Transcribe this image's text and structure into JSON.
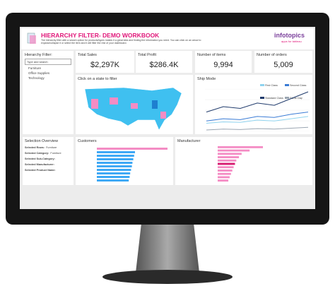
{
  "header": {
    "title": "HIERARCHY FILTER- DEMO WORKBOOK",
    "description": "The hierarchy filter with a search option for products/types makes it a great idea and finding the information you need. You can click on an arrow to expand/collapse it or select the item and it will filter the rest of your dashboard.",
    "logo": "infotopics",
    "logo_tagline": "apps for tableau"
  },
  "filter": {
    "title": "Hierarchy Filter:",
    "search": "Type and search",
    "items": [
      "Furniture",
      "Office Supplies",
      "Technology"
    ]
  },
  "kpis": [
    {
      "label": "Total Sales",
      "value": "$2,297K"
    },
    {
      "label": "Total Profit",
      "value": "$286.4K"
    },
    {
      "label": "Number of items",
      "value": "9,994"
    },
    {
      "label": "Number of orders",
      "value": "5,009"
    }
  ],
  "map": {
    "title": "Click on a state to filter"
  },
  "ship_mode": {
    "title": "Ship Mode",
    "series": [
      {
        "name": "First Class",
        "color": "#8fd3ef",
        "values": [
          25,
          28,
          27,
          32,
          30,
          35,
          40
        ]
      },
      {
        "name": "Second Class",
        "color": "#3a7bd5",
        "values": [
          30,
          35,
          33,
          40,
          38,
          45,
          50
        ]
      },
      {
        "name": "Standard Class",
        "color": "#1f3a6b",
        "values": [
          50,
          62,
          58,
          70,
          65,
          80,
          95
        ]
      },
      {
        "name": "Same Day",
        "color": "#9aa5b1",
        "values": [
          10,
          12,
          11,
          13,
          12,
          14,
          16
        ]
      }
    ]
  },
  "selection": {
    "title": "Selection Overview",
    "rows": [
      {
        "label": "Selected Rows:",
        "value": "Furniture"
      },
      {
        "label": "Selected Category:",
        "value": "Furniture"
      },
      {
        "label": "Selected Sub-Category:"
      },
      {
        "label": "Selected Manufacturer:"
      },
      {
        "label": "Selected Product Name:"
      }
    ]
  },
  "customers": {
    "title": "Customers",
    "values": [
      25,
      13.5,
      13.2,
      12.9,
      12.6,
      12.4,
      12.1,
      11.8,
      11.6,
      11.3
    ],
    "colors": [
      "#f48cc4",
      "#3fa9f5",
      "#3fa9f5",
      "#3fa9f5",
      "#3fa9f5",
      "#3fa9f5",
      "#3fa9f5",
      "#3fa9f5",
      "#3fa9f5",
      "#3fa9f5"
    ]
  },
  "manufacturer": {
    "title": "Manufacturer",
    "values": [
      17,
      12,
      9,
      8,
      7,
      6.5,
      6,
      5.5,
      5,
      4.5,
      4
    ],
    "colors": [
      "#f48cc4",
      "#f48cc4",
      "#f48cc4",
      "#f48cc4",
      "#f48cc4",
      "#d6186f",
      "#f48cc4",
      "#f48cc4",
      "#f48cc4",
      "#f48cc4",
      "#f48cc4"
    ]
  }
}
